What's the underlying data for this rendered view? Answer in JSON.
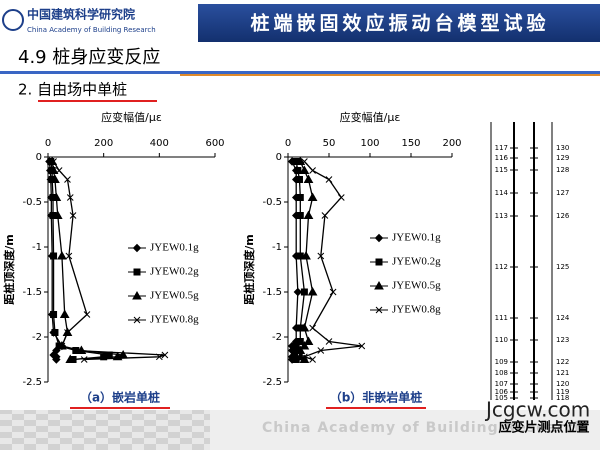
{
  "slide": {
    "logo_cn": "中国建筑科学研究院",
    "logo_en": "China Academy of Building Research",
    "banner": "桩端嵌固效应振动台模型试验",
    "heading": "4.9 桩身应变反应",
    "subheading": "2. 自由场中单桩",
    "footer": "China Academy of Building Research",
    "watermark": "Jcgcw.com",
    "gauge_title": "应变片测点位置",
    "gauges_left": [
      "117",
      "116",
      "115",
      "114",
      "113",
      "112",
      "111",
      "110",
      "109",
      "108",
      "107",
      "106",
      "105"
    ],
    "gauges_right": [
      "130",
      "129",
      "128",
      "127",
      "126",
      "125",
      "124",
      "123",
      "122",
      "121",
      "120",
      "119",
      "118"
    ]
  },
  "chart_data": [
    {
      "type": "line",
      "caption": "（a）嵌岩单桩",
      "x_label": "应变幅值/με",
      "y_label": "距桩顶深度/m",
      "y": [
        -0.05,
        -0.15,
        -0.25,
        -0.45,
        -0.65,
        -1.1,
        -1.75,
        -1.95,
        -2.1,
        -2.15,
        -2.2,
        -2.22,
        -2.25
      ],
      "xlim": [
        0,
        600
      ],
      "xticks": [
        0,
        200,
        400,
        600
      ],
      "ylim": [
        -2.5,
        0
      ],
      "yticks": [
        0,
        -0.5,
        -1,
        -1.5,
        -2,
        -2.5
      ],
      "series": [
        {
          "name": "JYEW0.1g",
          "color": "#000000",
          "marker": "diamond",
          "values": [
            5,
            8,
            10,
            12,
            12,
            15,
            15,
            20,
            50,
            30,
            20,
            30,
            30
          ]
        },
        {
          "name": "JYEW0.2g",
          "color": "#000000",
          "marker": "square",
          "values": [
            10,
            15,
            15,
            18,
            18,
            20,
            20,
            25,
            40,
            100,
            220,
            200,
            90
          ]
        },
        {
          "name": "JYEW0.5g",
          "color": "#000000",
          "marker": "triangle",
          "values": [
            15,
            20,
            25,
            30,
            35,
            50,
            60,
            70,
            50,
            120,
            270,
            250,
            80
          ]
        },
        {
          "name": "JYEW0.8g",
          "color": "#000000",
          "marker": "cross",
          "values": [
            20,
            40,
            70,
            80,
            90,
            75,
            140,
            70,
            50,
            100,
            420,
            400,
            130
          ]
        }
      ]
    },
    {
      "type": "line",
      "caption": "（b）非嵌岩单桩",
      "x_label": "应变幅值/με",
      "y_label": "距桩顶深度/m",
      "y": [
        -0.05,
        -0.15,
        -0.25,
        -0.45,
        -0.65,
        -1.1,
        -1.5,
        -1.9,
        -2.05,
        -2.1,
        -2.15,
        -2.22,
        -2.25
      ],
      "xlim": [
        0,
        200
      ],
      "xticks": [
        0,
        50,
        100,
        150,
        200
      ],
      "ylim": [
        -2.5,
        0
      ],
      "yticks": [
        0,
        -0.5,
        -1,
        -1.5,
        -2,
        -2.5
      ],
      "series": [
        {
          "name": "JYEW0.1g",
          "color": "#000000",
          "marker": "diamond",
          "values": [
            5,
            10,
            10,
            10,
            10,
            10,
            12,
            10,
            10,
            5,
            5,
            5,
            5
          ]
        },
        {
          "name": "JYEW0.2g",
          "color": "#000000",
          "marker": "square",
          "values": [
            10,
            12,
            14,
            15,
            15,
            15,
            20,
            15,
            15,
            10,
            10,
            8,
            10
          ]
        },
        {
          "name": "JYEW0.5g",
          "color": "#000000",
          "marker": "triangle",
          "values": [
            15,
            20,
            25,
            30,
            25,
            22,
            30,
            20,
            25,
            20,
            15,
            15,
            20
          ]
        },
        {
          "name": "JYEW0.8g",
          "color": "#000000",
          "marker": "cross",
          "values": [
            20,
            30,
            50,
            65,
            45,
            40,
            55,
            30,
            50,
            90,
            40,
            20,
            30
          ]
        }
      ]
    }
  ]
}
